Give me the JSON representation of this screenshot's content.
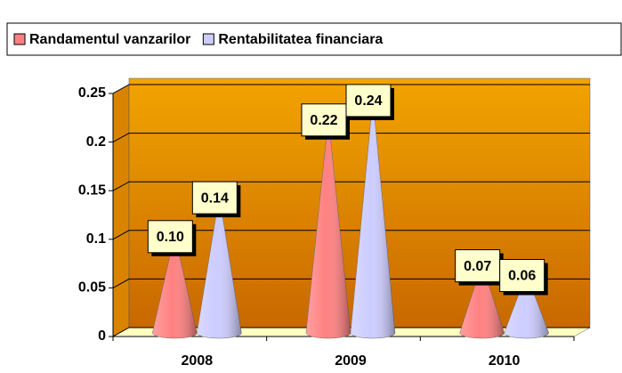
{
  "chart_data": {
    "type": "cone",
    "categories": [
      "2008",
      "2009",
      "2010"
    ],
    "series": [
      {
        "name": "Randamentul vanzarilor",
        "color": "#ff8080",
        "values": [
          0.1,
          0.22,
          0.07
        ],
        "value_labels": [
          "0.10",
          "0.22",
          "0.07"
        ]
      },
      {
        "name": "Rentabilitatea financiara",
        "color": "#ccccff",
        "values": [
          0.14,
          0.24,
          0.06
        ],
        "value_labels": [
          "0.14",
          "0.24",
          "0.06"
        ]
      }
    ],
    "ylim": [
      0,
      0.25
    ],
    "yticks": [
      0,
      0.05,
      0.1,
      0.15,
      0.2,
      0.25
    ],
    "grid": true
  }
}
